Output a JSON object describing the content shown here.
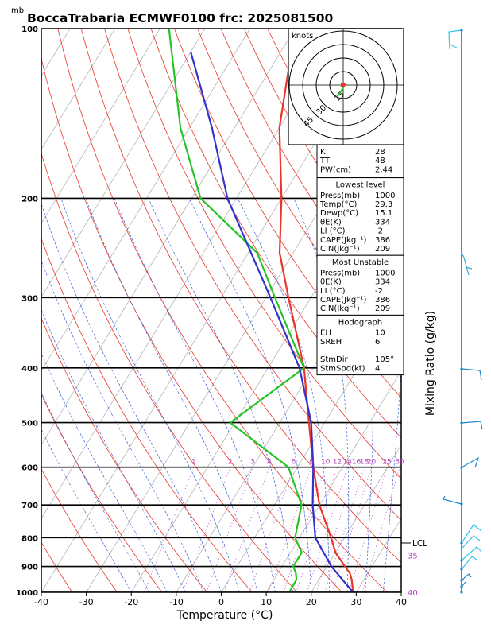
{
  "header": {
    "unit_label": "mb",
    "title": "BoccaTrabaria ECMWF0100 frc: 2025081500"
  },
  "chart_data": {
    "type": "line",
    "title": "BoccaTrabaria ECMWF0100 frc: 2025081500",
    "xlabel": "Temperature (°C)",
    "ylabel": "mb",
    "right_label": "Mixing Ratio (g/kg)",
    "xlim": [
      -40,
      40
    ],
    "ylim": [
      1000,
      100
    ],
    "y_scale": "log",
    "x_ticks": [
      "-40",
      "-30",
      "-20",
      "-10",
      "0",
      "10",
      "20",
      "30",
      "40"
    ],
    "p_ticks": [
      "100",
      "200",
      "300",
      "400",
      "500",
      "600",
      "700",
      "800",
      "900",
      "1000"
    ],
    "mixing_ratio_labels": [
      "1",
      "2",
      "3",
      "4",
      "6",
      "8",
      "10",
      "12",
      "14",
      "16",
      "18",
      "20",
      "25",
      "30"
    ],
    "temp_overflow_labels": [
      "35",
      "40"
    ],
    "lcl_label": "LCL",
    "series": [
      {
        "name": "Temperature",
        "color": "#e8352b",
        "points": [
          [
            1000,
            29.3
          ],
          [
            950,
            27.3
          ],
          [
            925,
            26
          ],
          [
            900,
            24
          ],
          [
            850,
            20
          ],
          [
            800,
            17
          ],
          [
            700,
            10
          ],
          [
            600,
            3.5
          ],
          [
            500,
            -3.5
          ],
          [
            400,
            -12
          ],
          [
            300,
            -25
          ],
          [
            250,
            -33
          ],
          [
            200,
            -40
          ],
          [
            150,
            -50
          ],
          [
            100,
            -60
          ]
        ]
      },
      {
        "name": "Dewpoint",
        "color": "#27c427",
        "points": [
          [
            1000,
            15.1
          ],
          [
            950,
            15
          ],
          [
            925,
            14
          ],
          [
            900,
            12.5
          ],
          [
            850,
            12.5
          ],
          [
            800,
            9
          ],
          [
            700,
            6
          ],
          [
            600,
            -2
          ],
          [
            500,
            -21
          ],
          [
            400,
            -12
          ],
          [
            300,
            -28
          ],
          [
            250,
            -38
          ],
          [
            200,
            -58
          ],
          [
            150,
            -72
          ],
          [
            100,
            -88
          ]
        ]
      },
      {
        "name": "Parcel",
        "color": "#3333cc",
        "points": [
          [
            1000,
            29.3
          ],
          [
            900,
            21
          ],
          [
            800,
            13.5
          ],
          [
            700,
            8.5
          ],
          [
            600,
            3.5
          ],
          [
            500,
            -3
          ],
          [
            400,
            -13
          ],
          [
            300,
            -29
          ],
          [
            200,
            -52
          ],
          [
            150,
            -65
          ],
          [
            110,
            -80
          ]
        ]
      }
    ],
    "hodograph": {
      "unit_label": "knots",
      "ring_labels": [
        "15",
        "30",
        "45"
      ]
    },
    "indices": [
      {
        "rows": [
          [
            "K",
            "28"
          ],
          [
            "TT",
            "48"
          ],
          [
            "PW(cm)",
            "2.44"
          ]
        ]
      },
      {
        "title": "Lowest level",
        "rows": [
          [
            "Press(mb)",
            "1000"
          ],
          [
            "Temp(°C)",
            "29.3"
          ],
          [
            "Dewp(°C)",
            "15.1"
          ],
          [
            "θE(K)",
            "334"
          ],
          [
            "LI (°C)",
            "-2"
          ],
          [
            "CAPE(Jkg⁻¹)",
            "386"
          ],
          [
            "CIN(Jkg⁻¹)",
            "209"
          ]
        ]
      },
      {
        "title": "Most Unstable",
        "rows": [
          [
            "Press(mb)",
            "1000"
          ],
          [
            "θE(K)",
            "334"
          ],
          [
            "LI (°C)",
            "-2"
          ],
          [
            "CAPE(Jkg⁻¹)",
            "386"
          ],
          [
            "CIN(Jkg⁻¹)",
            "209"
          ]
        ]
      },
      {
        "title": "Hodograph",
        "rows": [
          [
            "EH",
            "10"
          ],
          [
            "SREH",
            "6"
          ],
          [
            "",
            ""
          ],
          [
            "StmDir",
            "105°"
          ],
          [
            "StmSpd(kt)",
            "4"
          ]
        ]
      }
    ]
  }
}
